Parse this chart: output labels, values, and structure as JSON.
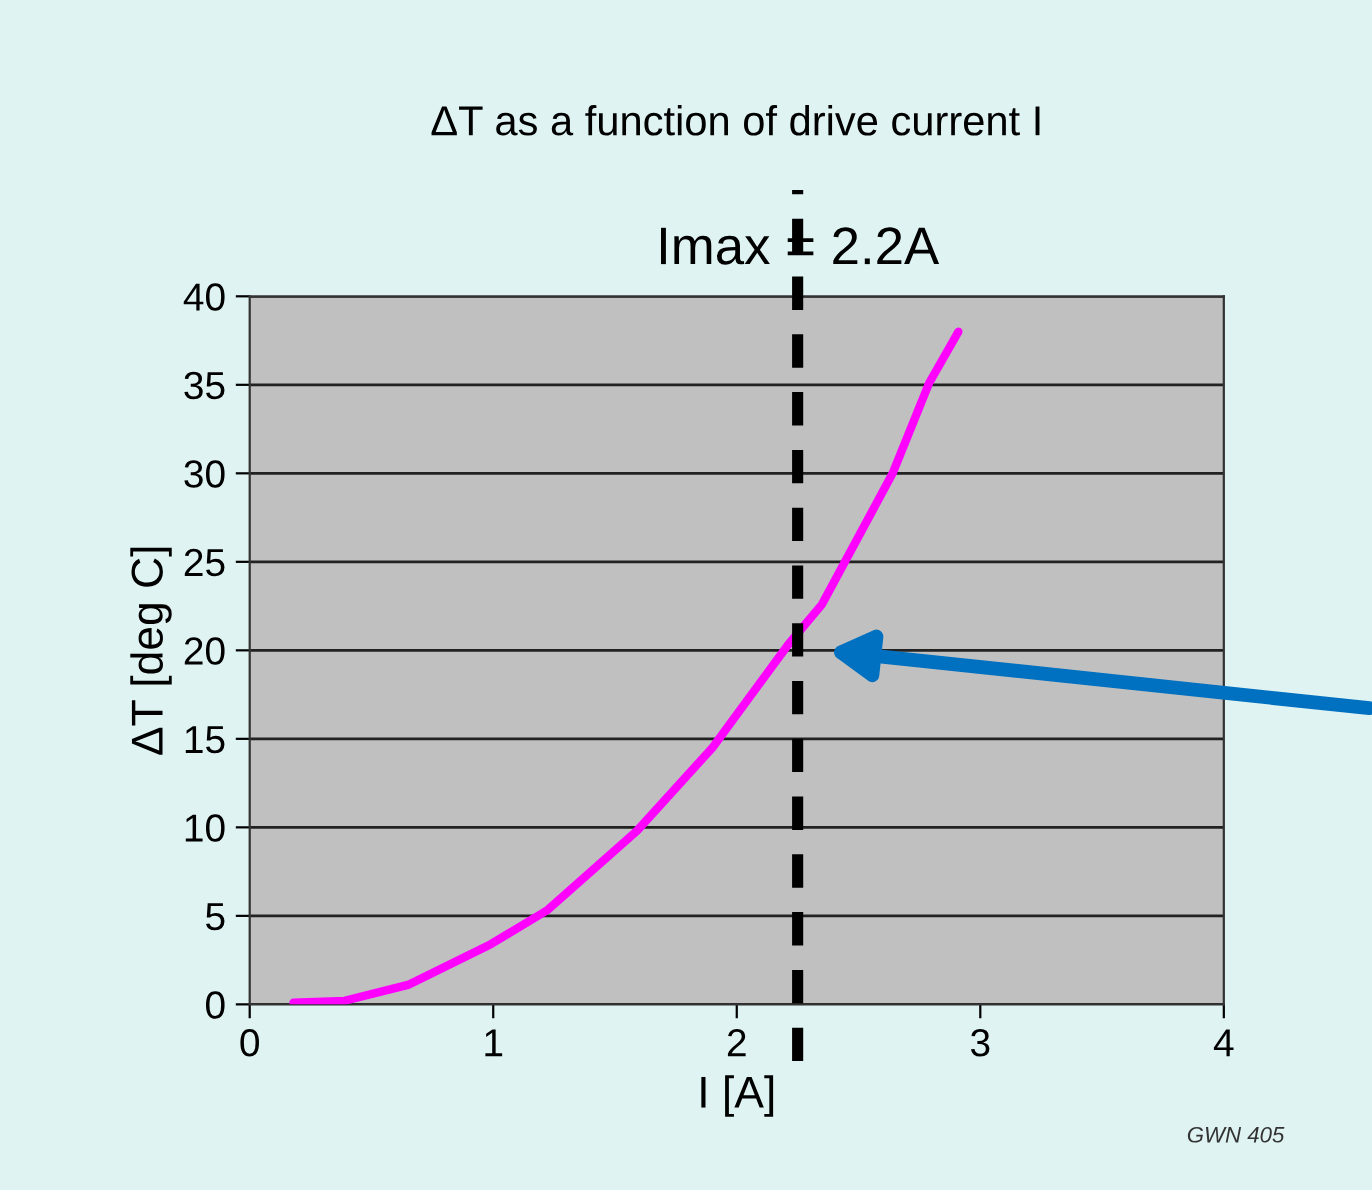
{
  "chart_data": {
    "type": "line",
    "title": "ΔT as a function of drive current I",
    "xlabel": "I [A]",
    "ylabel": "ΔT [deg C]",
    "x": [
      0.18,
      0.39,
      0.65,
      0.99,
      1.22,
      1.59,
      1.9,
      2.21,
      2.35,
      2.64,
      2.79,
      2.91
    ],
    "series": [
      {
        "color": "#ff00ff",
        "values": [
          0.1,
          0.2,
          1.1,
          3.4,
          5.3,
          9.8,
          14.5,
          20.3,
          22.6,
          30.0,
          35.1,
          38.0
        ]
      }
    ],
    "xlim": [
      0,
      4
    ],
    "xticks": [
      0,
      1,
      2,
      3,
      4
    ],
    "ylim": [
      0,
      40
    ],
    "yticks": [
      0,
      5,
      10,
      15,
      20,
      25,
      30,
      35,
      40
    ],
    "grid": "y",
    "marker": "none",
    "line_style": "solid",
    "ref_lines": [
      {
        "axis": "x",
        "value": 2.25,
        "label": "Imax = 2.2A",
        "color": "#000000",
        "line_style": "dashed"
      }
    ],
    "annotations": [
      "GWN 405"
    ]
  }
}
